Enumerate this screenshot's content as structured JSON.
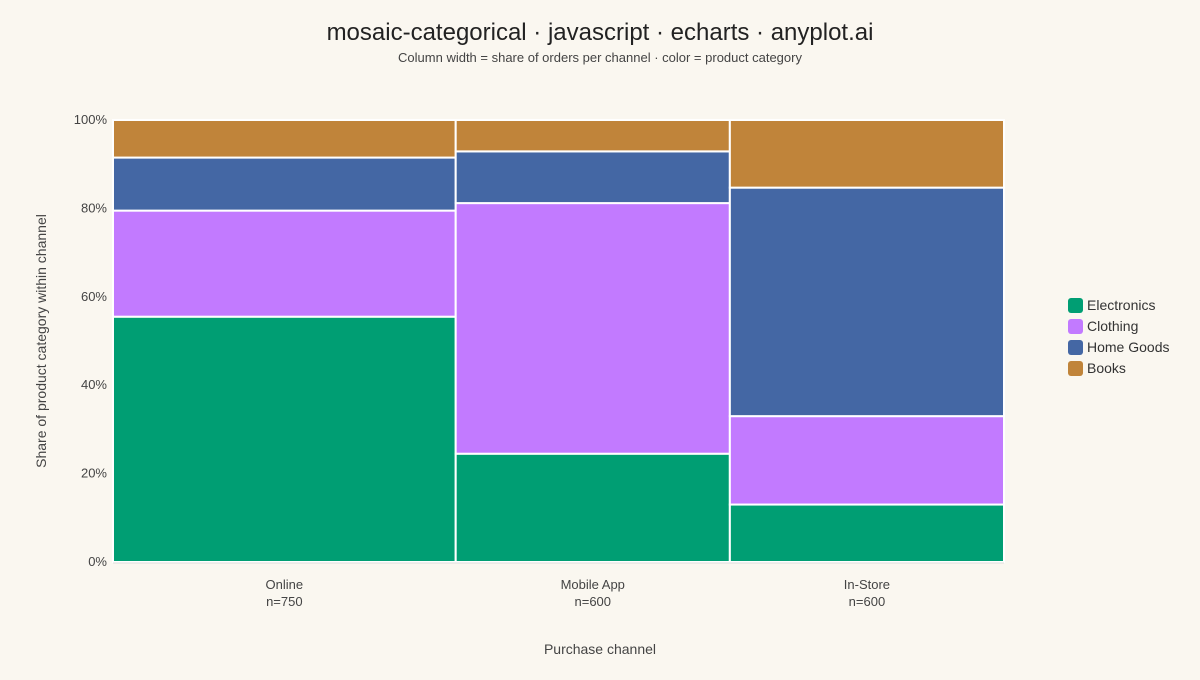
{
  "chart_data": {
    "type": "mosaic",
    "title": "mosaic-categorical · javascript · echarts · anyplot.ai",
    "subtitle": "Column width = share of orders per channel · color = product category",
    "xlabel": "Purchase channel",
    "ylabel": "Share of product category within channel",
    "ylim": [
      0,
      100
    ],
    "y_ticks": [
      "0%",
      "20%",
      "40%",
      "60%",
      "80%",
      "100%"
    ],
    "y_tick_values": [
      0,
      20,
      40,
      60,
      80,
      100
    ],
    "legend_position": "right",
    "categories": [
      {
        "name": "Online",
        "count_label": "n=750",
        "count": 750
      },
      {
        "name": "Mobile App",
        "count_label": "n=600",
        "count": 600
      },
      {
        "name": "In-Store",
        "count_label": "n=600",
        "count": 600
      }
    ],
    "series": [
      {
        "name": "Electronics",
        "color": "#009e73",
        "values": [
          55.5,
          24.5,
          13
        ]
      },
      {
        "name": "Clothing",
        "color": "#c27aff",
        "values": [
          24,
          56.7,
          20
        ]
      },
      {
        "name": "Home Goods",
        "color": "#4467a4",
        "values": [
          12,
          11.7,
          51.7
        ]
      },
      {
        "name": "Books",
        "color": "#c0843a",
        "values": [
          8.5,
          7.1,
          15.3
        ]
      }
    ]
  }
}
